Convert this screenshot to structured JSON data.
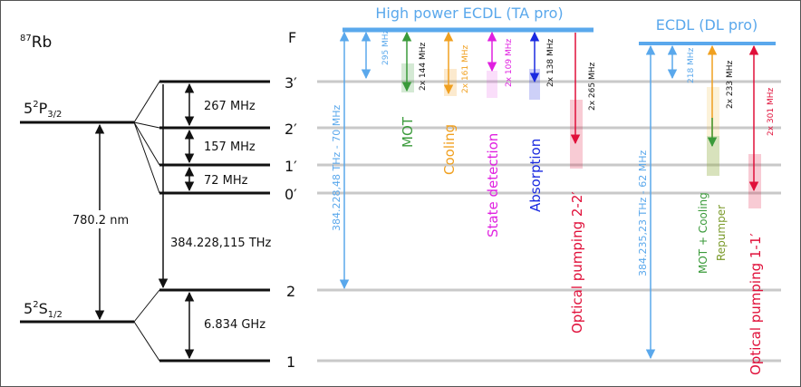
{
  "atom": {
    "isotope": "87",
    "element": "Rb"
  },
  "column_header": "F",
  "excited_state": {
    "label": "5",
    "sup": "2",
    "main": "P",
    "sub": "3/2"
  },
  "ground_state": {
    "label": "5",
    "sup": "2",
    "main": "S",
    "sub": "1/2"
  },
  "excited_levels": [
    "3′",
    "2′",
    "1′",
    "0′"
  ],
  "ground_levels": [
    "2",
    "1"
  ],
  "splittings": {
    "e32": "267 MHz",
    "e21": "157 MHz",
    "e10": "72 MHz",
    "g21": "6.834 GHz"
  },
  "transitions": {
    "d2_wavelength": "780.2 nm",
    "hyperfine_gap": "384.228,115 THz"
  },
  "lasers": {
    "ta_pro": {
      "title": "High power ECDL (TA pro)",
      "offset": "384.228,48 THz - 70 MHz",
      "aom": "295 MHz",
      "beams": [
        {
          "name": "MOT",
          "shift": "2x 144 MHz",
          "color": "#3a9a3a"
        },
        {
          "name": "Cooling",
          "shift": "2x 161 MHz",
          "color": "#f0a020"
        },
        {
          "name": "State detection",
          "shift": "2x 109 MHz",
          "color": "#e020e0"
        },
        {
          "name": "Absorption",
          "shift": "2x 138 MHz",
          "color": "#1a2ae0"
        },
        {
          "name": "Optical pumping 2-2′",
          "shift": "2x 265 MHz",
          "color": "#e0103a"
        }
      ]
    },
    "dl_pro": {
      "title": "ECDL (DL pro)",
      "offset": "384.235,23 THz - 62 MHz",
      "aom": "218 MHz",
      "beams": [
        {
          "name": "MOT + Cooling",
          "name2": "Repumper",
          "shift": "2x 233 MHz"
        },
        {
          "name": "Optical pumping 1-1′",
          "shift": "2x 301 MHz",
          "color": "#e0103a"
        }
      ]
    }
  },
  "colors": {
    "laser_blue": "#5aa8ec",
    "grey_line": "#c9c9c9",
    "black": "#111111",
    "green": "#3a9a3a",
    "orange": "#f0a020",
    "magenta": "#e020e0",
    "blue": "#1a2ae0",
    "red": "#e0103a",
    "olive": "#7a9a2a"
  }
}
